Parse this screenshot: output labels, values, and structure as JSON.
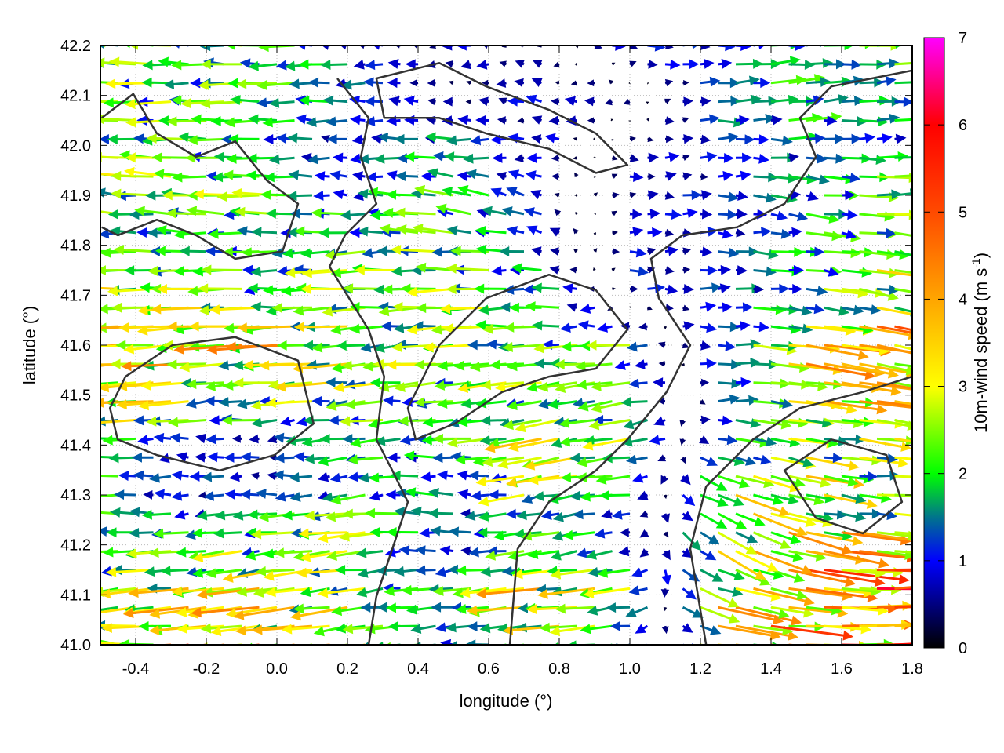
{
  "chart_data": {
    "type": "vector-field",
    "xlabel": "longitude (°)",
    "ylabel": "latitude (°)",
    "xlim": [
      -0.5,
      1.8
    ],
    "ylim": [
      41.0,
      42.2
    ],
    "xticks": [
      "-0.4",
      "-0.2",
      "0.0",
      "0.2",
      "0.4",
      "0.6",
      "0.8",
      "1.0",
      "1.2",
      "1.4",
      "1.6",
      "1.8"
    ],
    "xtick_values": [
      -0.4,
      -0.2,
      0.0,
      0.2,
      0.4,
      0.6,
      0.8,
      1.0,
      1.2,
      1.4,
      1.6,
      1.8
    ],
    "yticks": [
      "41.0",
      "41.1",
      "41.2",
      "41.3",
      "41.4",
      "41.5",
      "41.6",
      "41.7",
      "41.8",
      "41.9",
      "42.0",
      "42.1",
      "42.2"
    ],
    "ytick_values": [
      41.0,
      41.1,
      41.2,
      41.3,
      41.4,
      41.5,
      41.6,
      41.7,
      41.8,
      41.9,
      42.0,
      42.1,
      42.2
    ],
    "grid": true,
    "colorbar": {
      "label_main": "10m-wind speed (m s",
      "label_sup": "-1",
      "label_close": ")",
      "range": [
        0,
        7
      ],
      "ticks": [
        "0",
        "1",
        "2",
        "3",
        "4",
        "5",
        "6",
        "7"
      ],
      "tick_values": [
        0,
        1,
        2,
        3,
        4,
        5,
        6,
        7
      ],
      "stops": [
        [
          0,
          "#000000"
        ],
        [
          1,
          "#0000ff"
        ],
        [
          1.5,
          "#00748c"
        ],
        [
          2,
          "#00ff00"
        ],
        [
          3,
          "#ffff00"
        ],
        [
          4,
          "#ffa500"
        ],
        [
          5,
          "#ff4a00"
        ],
        [
          6,
          "#ff0000"
        ],
        [
          7,
          "#ff00ff"
        ]
      ]
    },
    "wind_grid": {
      "lon": [
        -0.5,
        -0.25,
        0.0,
        0.25,
        0.5,
        0.75,
        1.0,
        1.25,
        1.5,
        1.75
      ],
      "lat": [
        41.0,
        41.1,
        41.2,
        41.3,
        41.4,
        41.5,
        41.6,
        41.7,
        41.8,
        41.9,
        42.0,
        42.1,
        42.2
      ],
      "u": [
        [
          -1.5,
          -5,
          -4,
          -3,
          -1,
          -2.5,
          -2,
          3.5,
          4.5,
          5
        ],
        [
          -2.5,
          -3.5,
          -3,
          -2.5,
          -1.5,
          -3.5,
          -2.5,
          3.5,
          4.5,
          5.5
        ],
        [
          -2,
          -2,
          -2.5,
          -2.5,
          -1,
          -2,
          -1,
          2.5,
          3.5,
          4
        ],
        [
          -2,
          -1,
          -1.2,
          -2,
          -1.5,
          -2.5,
          -1.5,
          2.5,
          3,
          2
        ],
        [
          -2.2,
          -1.3,
          -1,
          -2,
          -1.5,
          -3,
          -2.5,
          1.5,
          2.5,
          2.5
        ],
        [
          -3.5,
          -3,
          -2.5,
          -2.5,
          -2,
          -2.5,
          -2,
          1.2,
          3,
          3.5
        ],
        [
          -4,
          -3.5,
          -3.5,
          -2.5,
          -2.5,
          -2.2,
          -2.2,
          2,
          3.5,
          4
        ],
        [
          -3,
          -2.5,
          -2,
          -2.5,
          -2.5,
          -2.2,
          0.8,
          1.2,
          1.8,
          3.5
        ],
        [
          -1.8,
          -2.2,
          -2,
          -2,
          -2.5,
          -1,
          1,
          1,
          2,
          2.5
        ],
        [
          -2.5,
          -2.5,
          -2.2,
          -1.5,
          -2,
          -0.8,
          0.8,
          1,
          1.5,
          2.5
        ],
        [
          -2.5,
          -2.3,
          -1.2,
          -1,
          -1.5,
          -1,
          0.5,
          1,
          1.5,
          1.5
        ],
        [
          -2.2,
          -2.2,
          -2,
          -1.5,
          -0.5,
          -0.8,
          -0.5,
          1.5,
          2,
          2
        ],
        [
          -2.8,
          -2.5,
          -2,
          -1,
          -0.8,
          -0.5,
          1,
          1,
          2,
          2
        ]
      ],
      "v": [
        [
          0.5,
          -0.6,
          -0.5,
          -0.4,
          0,
          -0.3,
          -0.3,
          -0.5,
          -0.3,
          0.2
        ],
        [
          -0.3,
          -0.4,
          -0.4,
          -0.3,
          -0.2,
          -0.3,
          -0.3,
          -1,
          -0.4,
          0.3
        ],
        [
          0.2,
          -0.2,
          -0.3,
          -0.2,
          0,
          -0.3,
          -0.2,
          -1.5,
          -0.8,
          -0.3
        ],
        [
          0,
          0,
          0,
          -0.2,
          0.3,
          -0.5,
          0,
          -1,
          -0.6,
          0
        ],
        [
          0,
          0,
          0,
          -0.2,
          0,
          -0.6,
          -0.3,
          -0.3,
          -0.4,
          -0.3
        ],
        [
          -0.2,
          -0.2,
          -0.2,
          -0.2,
          -0.2,
          -0.3,
          -0.3,
          0.1,
          -0.4,
          -0.5
        ],
        [
          -0.2,
          -0.2,
          -0.2,
          -0.2,
          -0.1,
          -0.1,
          0,
          0,
          -0.5,
          -0.8
        ],
        [
          0,
          -0.1,
          -0.1,
          -0.1,
          -0.1,
          0,
          0,
          0,
          -0.3,
          -0.6
        ],
        [
          0,
          0,
          0,
          -0.1,
          0.2,
          0.2,
          0,
          0,
          -0.2,
          -0.4
        ],
        [
          0.3,
          0.2,
          0,
          0,
          0.3,
          0.3,
          0,
          0,
          -0.2,
          0
        ],
        [
          0.1,
          0,
          0,
          0,
          0,
          0,
          0,
          0,
          0,
          0
        ],
        [
          0,
          0,
          0,
          0,
          0,
          0.2,
          0,
          0,
          0.2,
          0
        ],
        [
          0.2,
          0.2,
          0,
          0,
          0,
          0,
          0,
          0,
          0.2,
          0
        ]
      ]
    },
    "contours": [
      {
        "closed": false,
        "points": [
          [
            0.171,
            42.134
          ],
          [
            0.26,
            42.055
          ],
          [
            0.238,
            41.977
          ],
          [
            0.282,
            41.883
          ],
          [
            0.193,
            41.82
          ],
          [
            0.149,
            41.757
          ],
          [
            0.26,
            41.631
          ],
          [
            0.304,
            41.537
          ],
          [
            0.282,
            41.411
          ],
          [
            0.327,
            41.349
          ],
          [
            0.371,
            41.286
          ],
          [
            0.327,
            41.192
          ],
          [
            0.282,
            41.097
          ],
          [
            0.26,
            41.0
          ]
        ]
      },
      {
        "closed": false,
        "points": [
          [
            0.66,
            41.0
          ],
          [
            0.682,
            41.192
          ],
          [
            0.771,
            41.286
          ],
          [
            0.904,
            41.349
          ],
          [
            0.993,
            41.411
          ],
          [
            1.104,
            41.506
          ],
          [
            1.171,
            41.6
          ],
          [
            1.082,
            41.694
          ],
          [
            1.06,
            41.773
          ],
          [
            1.149,
            41.82
          ],
          [
            1.304,
            41.836
          ],
          [
            1.438,
            41.883
          ],
          [
            1.527,
            41.977
          ],
          [
            1.482,
            42.055
          ],
          [
            1.571,
            42.118
          ],
          [
            1.8,
            42.15
          ]
        ]
      },
      {
        "closed": false,
        "points": [
          [
            -0.496,
            42.055
          ],
          [
            -0.407,
            42.103
          ],
          [
            -0.34,
            42.024
          ],
          [
            -0.229,
            41.977
          ],
          [
            -0.118,
            42.008
          ],
          [
            -0.029,
            41.93
          ],
          [
            0.06,
            41.883
          ],
          [
            0.016,
            41.788
          ],
          [
            -0.118,
            41.773
          ],
          [
            -0.229,
            41.82
          ],
          [
            -0.34,
            41.851
          ],
          [
            -0.451,
            41.82
          ],
          [
            -0.496,
            41.836
          ]
        ]
      },
      {
        "closed": true,
        "points": [
          [
            -0.429,
            41.537
          ],
          [
            -0.296,
            41.6
          ],
          [
            -0.118,
            41.616
          ],
          [
            0.06,
            41.569
          ],
          [
            0.104,
            41.443
          ],
          [
            -0.007,
            41.38
          ],
          [
            -0.162,
            41.349
          ],
          [
            -0.34,
            41.38
          ],
          [
            -0.451,
            41.411
          ],
          [
            -0.473,
            41.474
          ]
        ]
      },
      {
        "closed": true,
        "points": [
          [
            0.371,
            41.474
          ],
          [
            0.46,
            41.6
          ],
          [
            0.593,
            41.694
          ],
          [
            0.771,
            41.741
          ],
          [
            0.904,
            41.71
          ],
          [
            0.993,
            41.631
          ],
          [
            0.904,
            41.553
          ],
          [
            0.771,
            41.537
          ],
          [
            0.638,
            41.506
          ],
          [
            0.504,
            41.443
          ],
          [
            0.393,
            41.411
          ]
        ]
      },
      {
        "closed": true,
        "points": [
          [
            0.282,
            42.134
          ],
          [
            0.46,
            42.165
          ],
          [
            0.593,
            42.118
          ],
          [
            0.771,
            42.071
          ],
          [
            0.904,
            42.024
          ],
          [
            0.993,
            41.961
          ],
          [
            0.904,
            41.945
          ],
          [
            0.771,
            41.993
          ],
          [
            0.593,
            42.024
          ],
          [
            0.46,
            42.055
          ],
          [
            0.304,
            42.055
          ]
        ]
      },
      {
        "closed": false,
        "points": [
          [
            1.216,
            41.0
          ],
          [
            1.171,
            41.192
          ],
          [
            1.216,
            41.317
          ],
          [
            1.349,
            41.411
          ],
          [
            1.482,
            41.474
          ],
          [
            1.66,
            41.506
          ],
          [
            1.8,
            41.537
          ]
        ]
      },
      {
        "closed": true,
        "points": [
          [
            1.438,
            41.349
          ],
          [
            1.571,
            41.411
          ],
          [
            1.727,
            41.38
          ],
          [
            1.771,
            41.286
          ],
          [
            1.66,
            41.223
          ],
          [
            1.527,
            41.254
          ]
        ]
      }
    ]
  }
}
